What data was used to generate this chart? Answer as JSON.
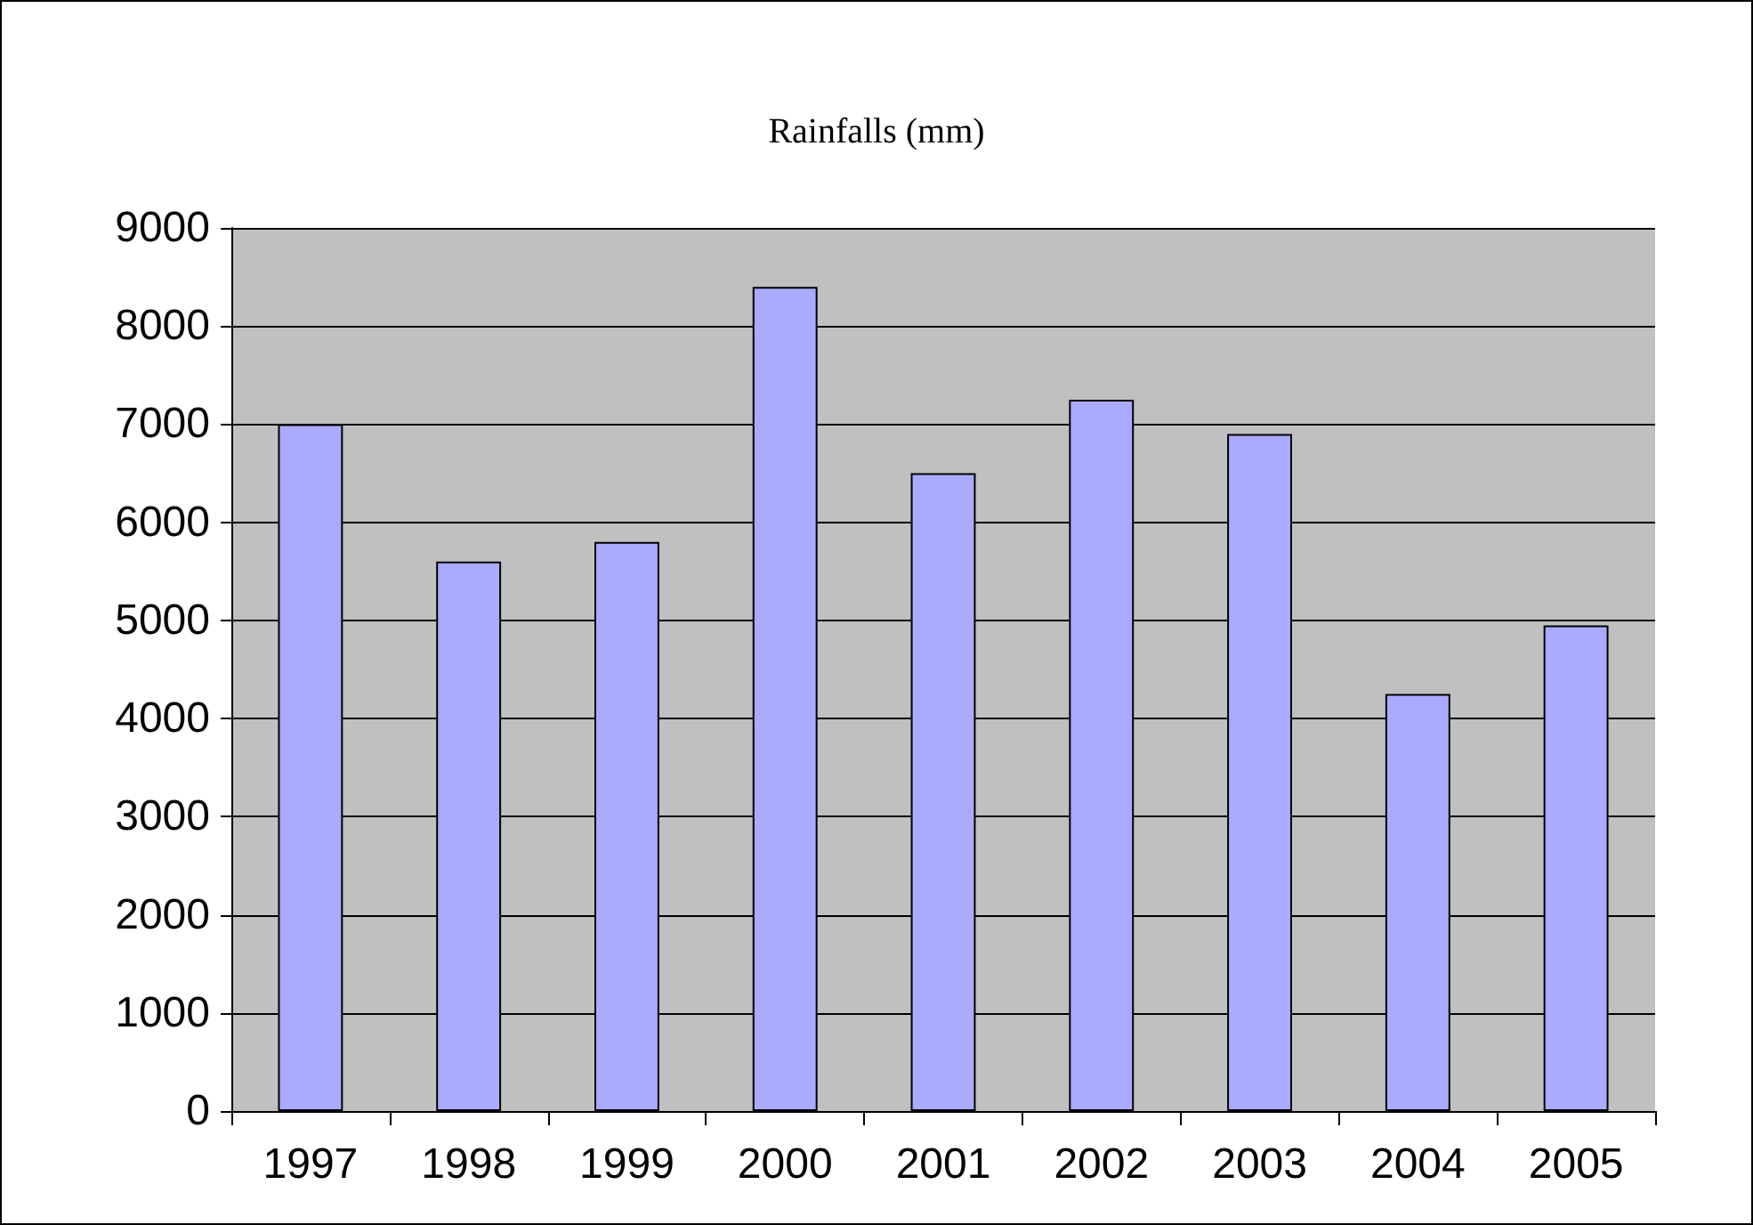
{
  "chart_data": {
    "type": "bar",
    "title": "Rainfalls (mm)",
    "categories": [
      "1997",
      "1998",
      "1999",
      "2000",
      "2001",
      "2002",
      "2003",
      "2004",
      "2005"
    ],
    "values": [
      7000,
      5600,
      5800,
      8400,
      6500,
      7250,
      6900,
      4250,
      4950
    ],
    "color": "#aaaaff",
    "ylim": [
      0,
      9000
    ],
    "yticks": [
      0,
      1000,
      2000,
      3000,
      4000,
      5000,
      6000,
      7000,
      8000,
      9000
    ],
    "grid": "y"
  }
}
